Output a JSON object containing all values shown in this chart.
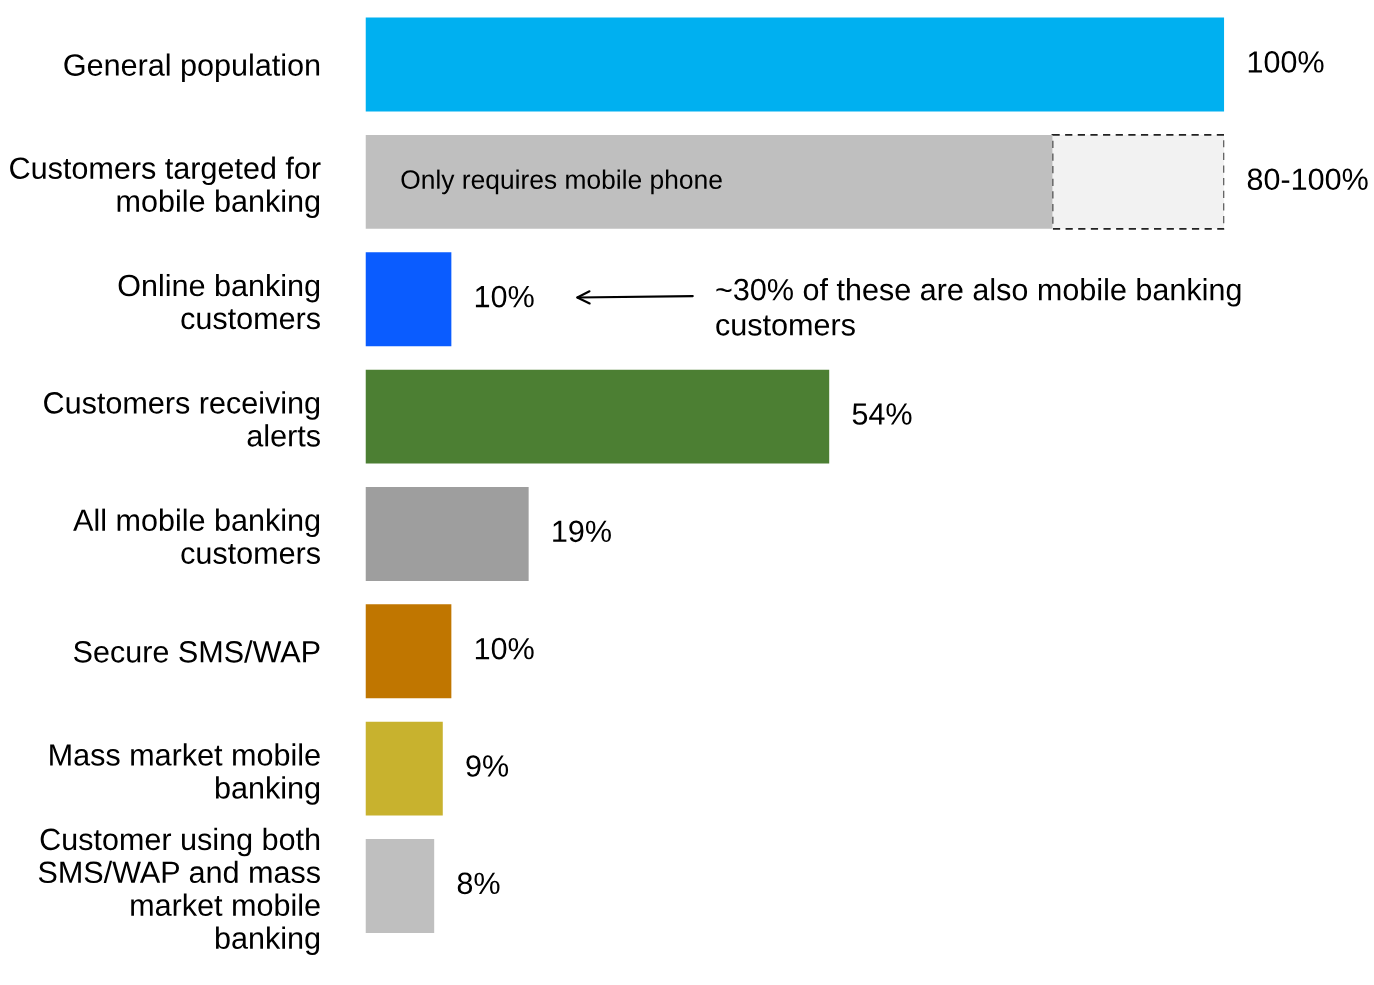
{
  "chart_data": {
    "type": "bar",
    "orientation": "horizontal",
    "stacked": true,
    "categories": [
      "General population",
      "Customers targeted for\nmobile banking",
      "Online banking\ncustomers",
      "Customers receiving\nalerts",
      "All mobile banking\ncustomers",
      "Secure SMS/WAP",
      "Mass market mobile\nbanking",
      "Customer using both\nSMS/WAP and mass\nmarket mobile\nbanking"
    ],
    "series": [
      {
        "colors": [
          "#00b0f0",
          "#bfbfbf",
          "#0a5cff",
          "#4c7f33",
          "#9e9e9e",
          "#c07600",
          "#c8b22e",
          "#bfbfbf"
        ],
        "values": [
          100,
          80,
          10,
          54,
          19,
          10,
          9,
          8
        ],
        "value_labels": [
          "100%",
          null,
          "10%",
          "54%",
          "19%",
          "10%",
          "9%",
          "8%"
        ]
      },
      {
        "color": "#f2f2f2",
        "line_style": "dashed",
        "values": [
          null,
          20,
          null,
          null,
          null,
          null,
          null,
          null
        ]
      }
    ],
    "totals": [
      null,
      "80-100%",
      null,
      null,
      null,
      null,
      null,
      null
    ],
    "annotations": [
      {
        "text": "Only requires mobile phone",
        "x": 0,
        "y": "Customers targeted for\nmobile banking"
      },
      "~30% of these are also mobile banking\ncustomers"
    ],
    "grid": false,
    "legend": false
  }
}
